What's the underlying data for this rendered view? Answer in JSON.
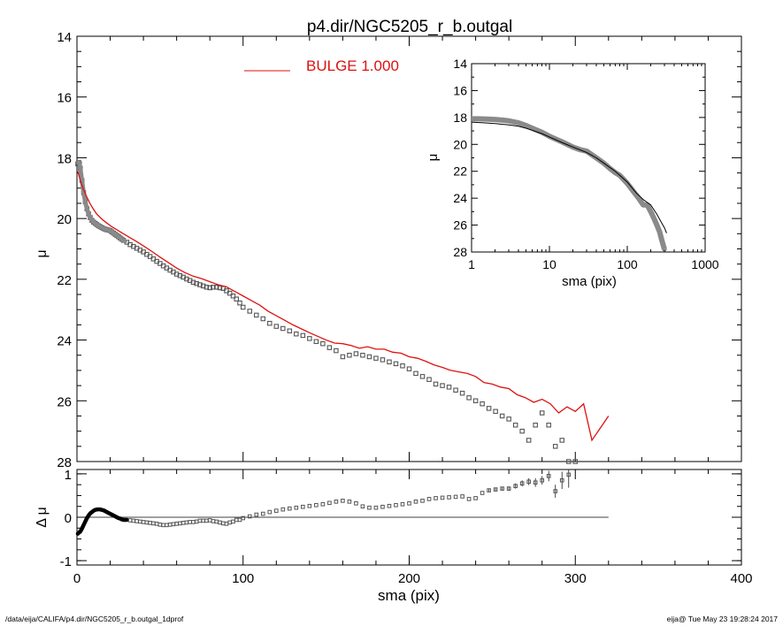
{
  "footer": {
    "left": "/data/eija/CALIFA/p4.dir/NGC5205_r_b.outgal_1dprof",
    "right": "eija@  Tue May 23 19:28:24 2017"
  },
  "colors": {
    "model": "#dd1111",
    "data": "#555555",
    "axes": "#000000"
  },
  "chart_data": [
    {
      "id": "main",
      "type": "scatter",
      "title": "p4.dir/NGC5205_r_b.outgal",
      "xlabel": "",
      "ylabel": "μ",
      "xlim": [
        0,
        400
      ],
      "ylim": [
        28,
        14
      ],
      "y_inverted": true,
      "yticks": [
        14,
        16,
        18,
        20,
        22,
        24,
        26,
        28
      ],
      "legend": {
        "label": "BULGE  1.000",
        "placement": "top-center"
      },
      "series": [
        {
          "name": "BULGE  1.000",
          "kind": "line",
          "x": [
            0.5,
            2,
            4,
            6,
            8,
            10,
            12,
            15,
            18,
            21,
            24,
            27,
            30,
            35,
            40,
            45,
            50,
            55,
            60,
            65,
            70,
            75,
            80,
            85,
            90,
            95,
            100,
            105,
            110,
            115,
            120,
            125,
            130,
            135,
            140,
            145,
            150,
            155,
            160,
            165,
            170,
            175,
            180,
            185,
            190,
            195,
            200,
            205,
            210,
            215,
            220,
            225,
            230,
            235,
            240,
            245,
            250,
            255,
            260,
            265,
            270,
            275,
            280,
            285,
            290,
            295,
            300,
            305,
            310,
            315,
            320
          ],
          "y": [
            18.45,
            18.75,
            19.05,
            19.3,
            19.52,
            19.7,
            19.86,
            20.02,
            20.15,
            20.27,
            20.37,
            20.47,
            20.57,
            20.73,
            20.9,
            21.08,
            21.27,
            21.45,
            21.63,
            21.78,
            21.9,
            21.98,
            22.08,
            22.18,
            22.25,
            22.4,
            22.55,
            22.7,
            22.85,
            23.05,
            23.2,
            23.35,
            23.5,
            23.63,
            23.76,
            23.88,
            24.0,
            24.1,
            24.12,
            24.18,
            24.27,
            24.22,
            24.3,
            24.3,
            24.4,
            24.43,
            24.55,
            24.6,
            24.7,
            24.82,
            24.9,
            25.0,
            25.05,
            25.1,
            25.2,
            25.4,
            25.45,
            25.55,
            25.6,
            25.8,
            25.9,
            26.05,
            25.95,
            26.1,
            26.4,
            26.2,
            26.35,
            26.1,
            27.3,
            26.9,
            26.5
          ]
        },
        {
          "name": "",
          "kind": "markers",
          "x": [
            0.5,
            1,
            1.5,
            2,
            3,
            4,
            5,
            6,
            7,
            8,
            9,
            10,
            11,
            12,
            13,
            14,
            15,
            16,
            17,
            18,
            19,
            20,
            21,
            22,
            23,
            24,
            25,
            26,
            27,
            28,
            30,
            32,
            34,
            36,
            38,
            40,
            42,
            44,
            46,
            48,
            50,
            52,
            54,
            56,
            58,
            60,
            62,
            64,
            66,
            68,
            70,
            72,
            74,
            76,
            78,
            80,
            82,
            84,
            86,
            88,
            90,
            92,
            94,
            96,
            98,
            100,
            104,
            108,
            112,
            116,
            120,
            124,
            128,
            132,
            136,
            140,
            144,
            148,
            152,
            156,
            160,
            164,
            168,
            172,
            176,
            180,
            184,
            188,
            192,
            196,
            200,
            204,
            208,
            212,
            216,
            220,
            224,
            228,
            232,
            236,
            240,
            244,
            248,
            252,
            256,
            260,
            264,
            268,
            272,
            276,
            280,
            284,
            288,
            292,
            296,
            300
          ],
          "y": [
            18.2,
            18.15,
            18.2,
            18.35,
            18.75,
            19.15,
            19.45,
            19.68,
            19.85,
            19.97,
            20.06,
            20.12,
            20.16,
            20.2,
            20.24,
            20.27,
            20.3,
            20.33,
            20.35,
            20.37,
            20.38,
            20.4,
            20.44,
            20.48,
            20.52,
            20.56,
            20.6,
            20.64,
            20.68,
            20.72,
            20.78,
            20.86,
            20.92,
            20.98,
            21.04,
            21.1,
            21.18,
            21.25,
            21.33,
            21.41,
            21.48,
            21.56,
            21.63,
            21.7,
            21.76,
            21.83,
            21.88,
            21.93,
            21.99,
            22.04,
            22.1,
            22.14,
            22.18,
            22.22,
            22.26,
            22.28,
            22.26,
            22.26,
            22.28,
            22.3,
            22.38,
            22.46,
            22.55,
            22.65,
            22.78,
            22.92,
            23.05,
            23.18,
            23.3,
            23.45,
            23.55,
            23.62,
            23.7,
            23.8,
            23.85,
            23.95,
            24.05,
            24.12,
            24.25,
            24.35,
            24.55,
            24.5,
            24.45,
            24.5,
            24.55,
            24.6,
            24.65,
            24.72,
            24.78,
            24.85,
            24.95,
            25.1,
            25.2,
            25.3,
            25.45,
            25.5,
            25.55,
            25.65,
            25.75,
            25.9,
            26.0,
            26.1,
            26.25,
            26.35,
            26.5,
            26.6,
            26.8,
            27.0,
            27.3,
            26.8,
            26.4,
            26.8,
            27.5,
            27.3,
            28.0,
            28.3
          ]
        }
      ]
    },
    {
      "id": "residual",
      "type": "scatter",
      "xlabel": "sma (pix)",
      "ylabel": "Δ μ",
      "xlim": [
        0,
        400
      ],
      "ylim": [
        -1,
        1
      ],
      "xticks": [
        0,
        100,
        200,
        300,
        400
      ],
      "yticks": [
        -1,
        0,
        1
      ],
      "zero_line_to_x": 320,
      "series": [
        {
          "name": "",
          "kind": "markers-with-errorbars",
          "x": [
            0.5,
            1,
            2,
            3,
            4,
            5,
            6,
            7,
            8,
            9,
            10,
            11,
            12,
            13,
            14,
            15,
            16,
            17,
            18,
            19,
            20,
            21,
            22,
            23,
            24,
            25,
            26,
            27,
            28,
            30,
            32,
            34,
            36,
            38,
            40,
            42,
            44,
            46,
            48,
            50,
            52,
            54,
            56,
            58,
            60,
            62,
            64,
            66,
            68,
            70,
            72,
            74,
            76,
            78,
            80,
            82,
            84,
            86,
            88,
            90,
            92,
            94,
            96,
            98,
            100,
            104,
            108,
            112,
            116,
            120,
            124,
            128,
            132,
            136,
            140,
            144,
            148,
            152,
            156,
            160,
            164,
            168,
            172,
            176,
            180,
            184,
            188,
            192,
            196,
            200,
            204,
            208,
            212,
            216,
            220,
            224,
            228,
            232,
            236,
            240,
            244,
            248,
            252,
            256,
            260,
            264,
            268,
            272,
            276,
            280,
            284,
            288,
            292,
            296
          ],
          "y": [
            -0.38,
            -0.36,
            -0.33,
            -0.26,
            -0.18,
            -0.1,
            -0.02,
            0.04,
            0.09,
            0.12,
            0.15,
            0.17,
            0.18,
            0.18,
            0.18,
            0.17,
            0.16,
            0.14,
            0.12,
            0.1,
            0.08,
            0.06,
            0.04,
            0.02,
            0.0,
            -0.02,
            -0.03,
            -0.05,
            -0.06,
            -0.06,
            -0.07,
            -0.08,
            -0.09,
            -0.1,
            -0.11,
            -0.12,
            -0.13,
            -0.14,
            -0.15,
            -0.17,
            -0.18,
            -0.18,
            -0.17,
            -0.16,
            -0.15,
            -0.14,
            -0.13,
            -0.12,
            -0.11,
            -0.11,
            -0.1,
            -0.08,
            -0.08,
            -0.08,
            -0.07,
            -0.09,
            -0.1,
            -0.12,
            -0.14,
            -0.15,
            -0.12,
            -0.1,
            -0.06,
            -0.06,
            -0.02,
            0.02,
            0.06,
            0.08,
            0.12,
            0.15,
            0.18,
            0.2,
            0.22,
            0.24,
            0.26,
            0.28,
            0.3,
            0.33,
            0.36,
            0.38,
            0.36,
            0.32,
            0.25,
            0.22,
            0.22,
            0.24,
            0.26,
            0.28,
            0.3,
            0.32,
            0.36,
            0.38,
            0.42,
            0.44,
            0.45,
            0.46,
            0.47,
            0.48,
            0.42,
            0.44,
            0.56,
            0.62,
            0.64,
            0.66,
            0.66,
            0.72,
            0.78,
            0.82,
            0.8,
            0.85,
            0.95,
            0.6,
            0.85,
            0.98
          ],
          "err": [
            0.01,
            0.01,
            0.01,
            0.01,
            0.01,
            0.01,
            0.01,
            0.01,
            0.01,
            0.01,
            0.01,
            0.01,
            0.01,
            0.01,
            0.01,
            0.01,
            0.01,
            0.01,
            0.01,
            0.01,
            0.01,
            0.01,
            0.01,
            0.01,
            0.01,
            0.01,
            0.01,
            0.01,
            0.01,
            0.01,
            0.01,
            0.01,
            0.01,
            0.01,
            0.01,
            0.01,
            0.01,
            0.01,
            0.01,
            0.01,
            0.01,
            0.01,
            0.01,
            0.01,
            0.01,
            0.01,
            0.01,
            0.01,
            0.01,
            0.01,
            0.01,
            0.01,
            0.01,
            0.01,
            0.01,
            0.01,
            0.01,
            0.01,
            0.01,
            0.01,
            0.01,
            0.01,
            0.01,
            0.01,
            0.01,
            0.01,
            0.01,
            0.01,
            0.01,
            0.01,
            0.01,
            0.01,
            0.01,
            0.01,
            0.01,
            0.01,
            0.01,
            0.01,
            0.01,
            0.01,
            0.01,
            0.01,
            0.01,
            0.01,
            0.01,
            0.01,
            0.01,
            0.01,
            0.01,
            0.01,
            0.01,
            0.01,
            0.01,
            0.01,
            0.01,
            0.01,
            0.01,
            0.01,
            0.01,
            0.02,
            0.02,
            0.03,
            0.04,
            0.04,
            0.05,
            0.06,
            0.07,
            0.08,
            0.1,
            0.1,
            0.12,
            0.15,
            0.2,
            0.3
          ]
        }
      ]
    },
    {
      "id": "inset",
      "type": "scatter",
      "xlabel": "sma (pix)",
      "ylabel": "μ",
      "xscale": "log",
      "xlim": [
        1,
        1000
      ],
      "ylim": [
        28,
        14
      ],
      "y_inverted": true,
      "xticks": [
        1,
        10,
        100,
        1000
      ],
      "yticks": [
        14,
        16,
        18,
        20,
        22,
        24,
        26,
        28
      ],
      "series": [
        {
          "name": "",
          "kind": "markers",
          "x": [
            1,
            1.2,
            1.5,
            2,
            2.5,
            3,
            4,
            5,
            6,
            8,
            10,
            12,
            15,
            20,
            25,
            30,
            40,
            50,
            60,
            70,
            80,
            100,
            120,
            140,
            160,
            180,
            200,
            220,
            240,
            260,
            280,
            300
          ],
          "y": [
            18.1,
            18.1,
            18.12,
            18.15,
            18.2,
            18.25,
            18.4,
            18.6,
            18.8,
            19.1,
            19.4,
            19.6,
            19.85,
            20.2,
            20.4,
            20.5,
            21.0,
            21.4,
            21.8,
            22.1,
            22.3,
            22.9,
            23.5,
            24.0,
            24.5,
            24.5,
            25.0,
            25.5,
            26.0,
            26.5,
            27.2,
            27.8
          ]
        },
        {
          "name": "",
          "kind": "line",
          "x": [
            1,
            1.5,
            2,
            3,
            4,
            5,
            6,
            8,
            10,
            15,
            20,
            30,
            40,
            50,
            70,
            100,
            130,
            160,
            200,
            240,
            280,
            300,
            320
          ],
          "y": [
            18.35,
            18.4,
            18.45,
            18.55,
            18.65,
            18.8,
            18.95,
            19.2,
            19.45,
            19.9,
            20.2,
            20.6,
            21.0,
            21.4,
            22.0,
            22.8,
            23.6,
            24.1,
            24.5,
            25.2,
            25.9,
            26.2,
            26.6
          ]
        }
      ]
    }
  ]
}
